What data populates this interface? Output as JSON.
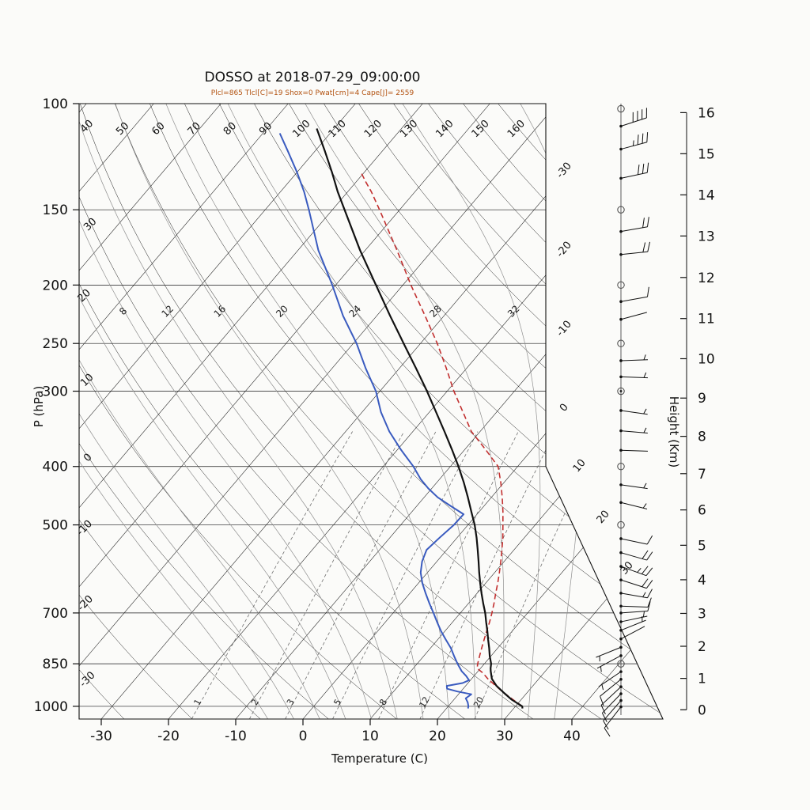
{
  "labels": {
    "title": "DOSSO at 2018-07-29_09:00:00",
    "subtitle": "Plcl=865 Tlcl[C]=19 Shox=0 Pwat[cm]=4 Cape[J]= 2559",
    "xlabel": "Temperature (C)",
    "ylabel_left": "P (hPa)",
    "ylabel_right": "Height (Km)"
  },
  "params": {
    "Plcl": 865,
    "Tlcl_C": 19,
    "Shox": 0,
    "Pwat_cm": 4,
    "Cape_J": 2559
  },
  "colors": {
    "temperature": "#111111",
    "dewpoint": "#3a5bbf",
    "parcel": "#c23030",
    "subtitle": "#b35413",
    "grid": "#1a1a1a",
    "moist_adiabat": "#8f8f8f",
    "mixing_ratio": "#6f6f6f",
    "background": "#fbfbf9"
  },
  "chart_data": {
    "type": "line",
    "chart_kind": "skew-t log-p sounding",
    "station": "DOSSO",
    "datetime": "2018-07-29_09:00:00",
    "pressure_ticks_hPa": [
      100,
      150,
      200,
      250,
      300,
      400,
      500,
      700,
      850,
      1000
    ],
    "temp_ticks_C": [
      -30,
      -20,
      -10,
      0,
      10,
      20,
      30,
      40
    ],
    "height_axis": {
      "ticks_km": [
        0,
        1,
        2,
        3,
        4,
        5,
        6,
        7,
        8,
        9,
        10,
        11,
        12,
        13,
        14,
        15,
        16
      ],
      "tick_pressures_hPa": [
        1013.25,
        898.8,
        795,
        701.2,
        616.6,
        540.5,
        472.2,
        411.1,
        356.5,
        308,
        265,
        227.3,
        194.3,
        165.8,
        141.7,
        121.1,
        103.5
      ]
    },
    "isotherms": {
      "step_C": 10,
      "right_edge_labels": [
        0,
        -10,
        -20,
        -30
      ],
      "lower_right_labels": [
        10,
        20,
        30
      ]
    },
    "dry_adiabats": {
      "values_C": [
        -30,
        -20,
        -10,
        0,
        10,
        20,
        30,
        40,
        50,
        60,
        70,
        80,
        90,
        100,
        110,
        120,
        130,
        140,
        150,
        160
      ],
      "top_labels": [
        50,
        60,
        70,
        80,
        90,
        100,
        110,
        120,
        130,
        140,
        150,
        160
      ],
      "left_labels": [
        40,
        30,
        20,
        10,
        0,
        -10,
        -20,
        -30
      ]
    },
    "moist_adiabats": {
      "values_C": [
        -8,
        -4,
        0,
        4,
        8,
        12,
        16,
        20,
        24,
        28,
        32,
        36
      ],
      "labels": [
        8,
        12,
        16,
        20,
        24,
        28,
        32
      ],
      "label_pressure_hPa": 225
    },
    "mixing_ratio_g_kg": [
      1,
      2,
      3,
      5,
      8,
      12,
      20
    ],
    "profiles": {
      "temperature_p_T": [
        [
          1008,
          31.3
        ],
        [
          1000,
          31
        ],
        [
          975,
          28.6
        ],
        [
          950,
          26.6
        ],
        [
          925,
          24.6
        ],
        [
          900,
          23
        ],
        [
          875,
          21.9
        ],
        [
          865,
          21.5
        ],
        [
          850,
          21
        ],
        [
          825,
          19.8
        ],
        [
          800,
          18.7
        ],
        [
          775,
          17.5
        ],
        [
          750,
          16.3
        ],
        [
          725,
          15
        ],
        [
          700,
          13.7
        ],
        [
          675,
          12.2
        ],
        [
          650,
          10.7
        ],
        [
          625,
          9.2
        ],
        [
          600,
          7.7
        ],
        [
          575,
          6.2
        ],
        [
          550,
          4.6
        ],
        [
          525,
          2.9
        ],
        [
          500,
          1
        ],
        [
          475,
          -1.2
        ],
        [
          450,
          -3.5
        ],
        [
          425,
          -6
        ],
        [
          400,
          -8.8
        ],
        [
          375,
          -11.9
        ],
        [
          350,
          -15.3
        ],
        [
          325,
          -19
        ],
        [
          300,
          -23
        ],
        [
          275,
          -27.5
        ],
        [
          250,
          -32.5
        ],
        [
          225,
          -38
        ],
        [
          200,
          -44
        ],
        [
          175,
          -50.8
        ],
        [
          150,
          -58.2
        ],
        [
          140,
          -61.5
        ],
        [
          130,
          -64.8
        ],
        [
          120,
          -68.5
        ],
        [
          110,
          -72.6
        ]
      ],
      "dewpoint_p_T": [
        [
          1008,
          23.2
        ],
        [
          1000,
          23
        ],
        [
          985,
          22.4
        ],
        [
          970,
          21.6
        ],
        [
          955,
          21.9
        ],
        [
          945,
          19.5
        ],
        [
          935,
          17.6
        ],
        [
          925,
          17.2
        ],
        [
          915,
          19.2
        ],
        [
          905,
          19.8
        ],
        [
          890,
          18.8
        ],
        [
          875,
          17.6
        ],
        [
          850,
          16
        ],
        [
          825,
          14.5
        ],
        [
          800,
          13
        ],
        [
          775,
          11.2
        ],
        [
          750,
          9.4
        ],
        [
          725,
          7.7
        ],
        [
          700,
          6
        ],
        [
          675,
          4.2
        ],
        [
          650,
          2.4
        ],
        [
          625,
          0.6
        ],
        [
          600,
          -1
        ],
        [
          575,
          -2.2
        ],
        [
          550,
          -3
        ],
        [
          525,
          -2.6
        ],
        [
          500,
          -2.1
        ],
        [
          480,
          -2
        ],
        [
          465,
          -5
        ],
        [
          450,
          -8
        ],
        [
          435,
          -10.5
        ],
        [
          420,
          -12.8
        ],
        [
          400,
          -15.5
        ],
        [
          375,
          -19.5
        ],
        [
          350,
          -23.5
        ],
        [
          325,
          -27.2
        ],
        [
          300,
          -30.6
        ],
        [
          275,
          -35
        ],
        [
          250,
          -39.5
        ],
        [
          225,
          -45
        ],
        [
          200,
          -50.5
        ],
        [
          175,
          -57
        ],
        [
          150,
          -63.5
        ],
        [
          140,
          -66.5
        ],
        [
          130,
          -70
        ],
        [
          120,
          -74
        ],
        [
          112,
          -77.5
        ]
      ],
      "parcel_p_T": [
        [
          1000,
          31
        ],
        [
          975,
          28.8
        ],
        [
          950,
          26.6
        ],
        [
          925,
          24.5
        ],
        [
          900,
          22.4
        ],
        [
          880,
          20.9
        ],
        [
          865,
          19.5
        ],
        [
          850,
          19
        ],
        [
          825,
          18.3
        ],
        [
          800,
          17.6
        ],
        [
          775,
          16.9
        ],
        [
          750,
          16.2
        ],
        [
          725,
          15.5
        ],
        [
          700,
          14.7
        ],
        [
          675,
          13.8
        ],
        [
          650,
          12.8
        ],
        [
          625,
          11.8
        ],
        [
          600,
          10.7
        ],
        [
          575,
          9.5
        ],
        [
          550,
          8.2
        ],
        [
          525,
          6.8
        ],
        [
          500,
          5.2
        ],
        [
          475,
          3.5
        ],
        [
          450,
          1.6
        ],
        [
          425,
          -0.5
        ],
        [
          400,
          -2.9
        ],
        [
          375,
          -6.9
        ],
        [
          350,
          -11.3
        ],
        [
          325,
          -15
        ],
        [
          300,
          -19
        ],
        [
          275,
          -23
        ],
        [
          250,
          -27.5
        ],
        [
          225,
          -32.8
        ],
        [
          200,
          -38.8
        ],
        [
          175,
          -45.3
        ],
        [
          150,
          -53
        ],
        [
          140,
          -56.5
        ],
        [
          135,
          -58.5
        ],
        [
          130,
          -60.5
        ]
      ]
    },
    "wind_barbs": [
      {
        "p": 102,
        "kt": 0
      },
      {
        "p": 109,
        "kt": 38,
        "dir": 72
      },
      {
        "p": 119,
        "kt": 35,
        "dir": 75
      },
      {
        "p": 133,
        "kt": 28,
        "dir": 78
      },
      {
        "p": 150,
        "kt": 0
      },
      {
        "p": 163,
        "kt": 22,
        "dir": 80
      },
      {
        "p": 178,
        "kt": 18,
        "dir": 84
      },
      {
        "p": 200,
        "kt": 0
      },
      {
        "p": 213,
        "kt": 8,
        "dir": 80
      },
      {
        "p": 228,
        "kt": 2,
        "dir": 75
      },
      {
        "p": 250,
        "kt": 0
      },
      {
        "p": 267,
        "kt": 5,
        "dir": 88
      },
      {
        "p": 284,
        "kt": 3,
        "dir": 92
      },
      {
        "p": 300,
        "kt": 0,
        "station": "double"
      },
      {
        "p": 323,
        "kt": 3,
        "dir": 98
      },
      {
        "p": 349,
        "kt": 5,
        "dir": 95
      },
      {
        "p": 376,
        "kt": 2,
        "dir": 92
      },
      {
        "p": 400,
        "kt": 0
      },
      {
        "p": 429,
        "kt": 7,
        "dir": 98
      },
      {
        "p": 459,
        "kt": 3,
        "dir": 104
      },
      {
        "p": 500,
        "kt": 0
      },
      {
        "p": 527,
        "kt": 12,
        "dir": 102
      },
      {
        "p": 556,
        "kt": 18,
        "dir": 106
      },
      {
        "p": 586,
        "kt": 25,
        "dir": 110
      },
      {
        "p": 617,
        "kt": 22,
        "dir": 108
      },
      {
        "p": 649,
        "kt": 15,
        "dir": 100
      },
      {
        "p": 682,
        "kt": 10,
        "dir": 92
      },
      {
        "p": 700,
        "kt": 8,
        "dir": 86
      },
      {
        "p": 724,
        "kt": 5,
        "dir": 78
      },
      {
        "p": 748,
        "kt": 3,
        "dir": 68
      },
      {
        "p": 773,
        "kt": 2,
        "dir": 62
      },
      {
        "p": 798,
        "kt": 3,
        "dir": 248
      },
      {
        "p": 824,
        "kt": 5,
        "dir": 242
      },
      {
        "p": 850,
        "kt": 0
      },
      {
        "p": 876,
        "kt": 5,
        "dir": 236
      },
      {
        "p": 902,
        "kt": 8,
        "dir": 231
      },
      {
        "p": 928,
        "kt": 10,
        "dir": 227
      },
      {
        "p": 953,
        "kt": 12,
        "dir": 224
      },
      {
        "p": 978,
        "kt": 12,
        "dir": 221
      },
      {
        "p": 1002,
        "kt": 10,
        "dir": 218
      }
    ]
  }
}
